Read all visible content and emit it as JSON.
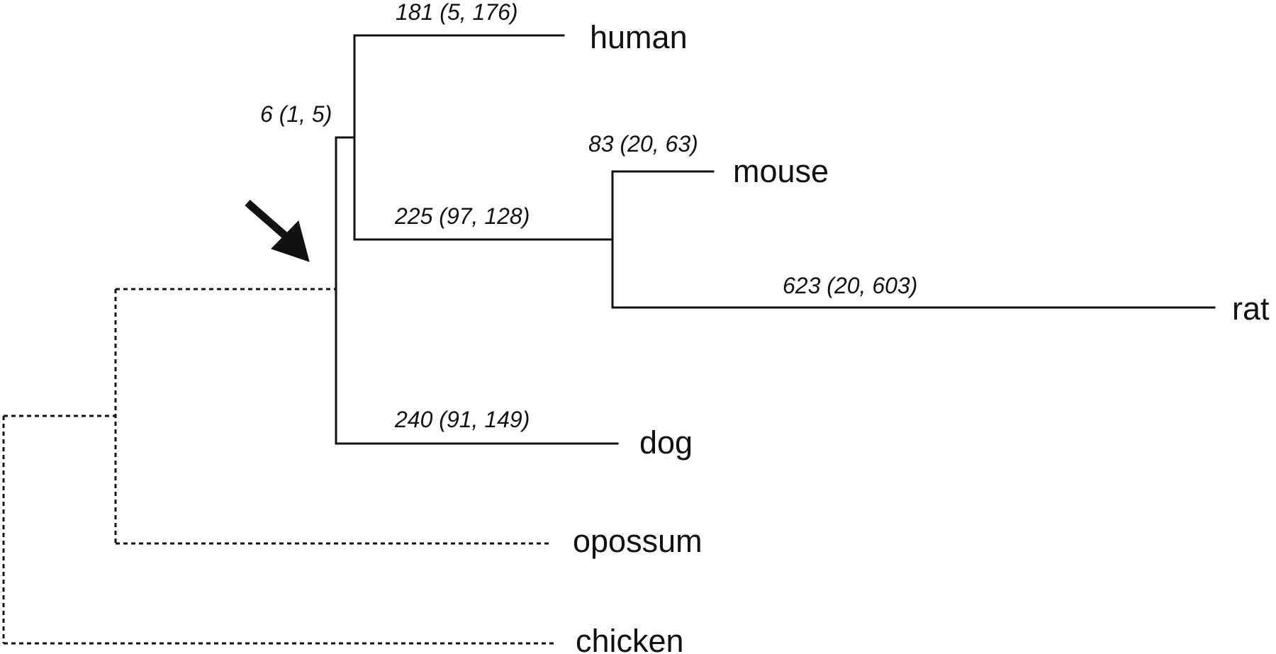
{
  "tree": {
    "taxa": {
      "human": "human",
      "mouse": "mouse",
      "rat": "rat",
      "dog": "dog",
      "opossum": "opossum",
      "chicken": "chicken"
    },
    "branch_labels": {
      "primate_rodent_stem": "6 (1, 5)",
      "human": "181 (5, 176)",
      "rodent_stem": "225 (97, 128)",
      "mouse": "83 (20, 63)",
      "rat": "623 (20, 603)",
      "dog": "240 (91, 149)"
    },
    "styles": {
      "line_color": "#111111",
      "outgroup_line": "dashed"
    },
    "arrow": "pointer-arrow"
  }
}
